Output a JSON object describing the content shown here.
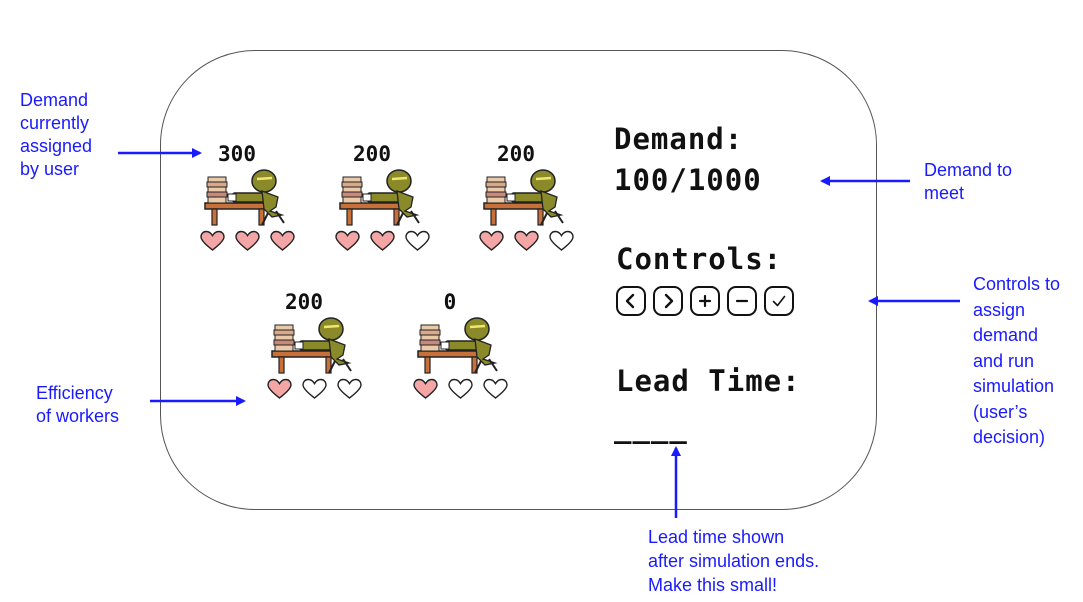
{
  "workers": [
    {
      "demand": "300",
      "hearts_filled": 3,
      "hearts_total": 3
    },
    {
      "demand": "200",
      "hearts_filled": 2,
      "hearts_total": 3
    },
    {
      "demand": "200",
      "hearts_filled": 2,
      "hearts_total": 3
    },
    {
      "demand": "200",
      "hearts_filled": 1,
      "hearts_total": 3
    },
    {
      "demand": "0",
      "hearts_filled": 1,
      "hearts_total": 3
    }
  ],
  "demand": {
    "label": "Demand:",
    "value": "100/1000"
  },
  "controls": {
    "label": "Controls:",
    "buttons": [
      {
        "icon": "chevron-left-icon"
      },
      {
        "icon": "chevron-right-icon"
      },
      {
        "icon": "plus-icon"
      },
      {
        "icon": "minus-icon"
      },
      {
        "icon": "check-icon"
      }
    ]
  },
  "lead_time": {
    "label": "Lead Time:",
    "value": "____"
  },
  "annotations": {
    "demand_assigned": [
      "Demand",
      "currently",
      "assigned",
      "by user"
    ],
    "demand_to_meet": [
      "Demand to",
      "meet"
    ],
    "controls_note": [
      "Controls to",
      "assign",
      "demand",
      "and run",
      "simulation",
      "(user’s",
      "decision)"
    ],
    "efficiency": [
      "Efficiency",
      "of workers"
    ],
    "lead_time_note": [
      "Lead time shown",
      "after simulation ends.",
      "Make this small!"
    ]
  },
  "colors": {
    "heart_fill": "#f4a6a6",
    "heart_outline": "#222222",
    "annotation": "#1a1aff",
    "worker_body": "#8a8a2a",
    "desk": "#c8703a"
  }
}
